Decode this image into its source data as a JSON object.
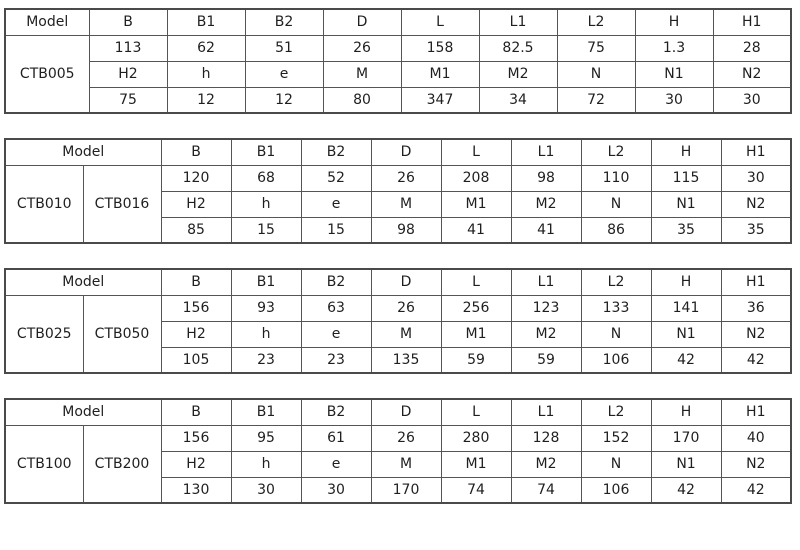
{
  "labels": {
    "model": "Model"
  },
  "dim_headers": [
    "B",
    "B1",
    "B2",
    "D",
    "L",
    "L1",
    "L2",
    "H",
    "H1"
  ],
  "param_labels": [
    "H2",
    "h",
    "e",
    "M",
    "M1",
    "M2",
    "N",
    "N1",
    "N2"
  ],
  "tables": [
    {
      "models": [
        "CTB005"
      ],
      "top_values": [
        "113",
        "62",
        "51",
        "26",
        "158",
        "82.5",
        "75",
        "1.3",
        "28"
      ],
      "bottom_values": [
        "75",
        "12",
        "12",
        "80",
        "347",
        "34",
        "72",
        "30",
        "30"
      ]
    },
    {
      "models": [
        "CTB010",
        "CTB016"
      ],
      "top_values": [
        "120",
        "68",
        "52",
        "26",
        "208",
        "98",
        "110",
        "115",
        "30"
      ],
      "bottom_values": [
        "85",
        "15",
        "15",
        "98",
        "41",
        "41",
        "86",
        "35",
        "35"
      ]
    },
    {
      "models": [
        "CTB025",
        "CTB050"
      ],
      "top_values": [
        "156",
        "93",
        "63",
        "26",
        "256",
        "123",
        "133",
        "141",
        "36"
      ],
      "bottom_values": [
        "105",
        "23",
        "23",
        "135",
        "59",
        "59",
        "106",
        "42",
        "42"
      ]
    },
    {
      "models": [
        "CTB100",
        "CTB200"
      ],
      "top_values": [
        "156",
        "95",
        "61",
        "26",
        "280",
        "128",
        "152",
        "170",
        "40"
      ],
      "bottom_values": [
        "130",
        "30",
        "30",
        "170",
        "74",
        "74",
        "106",
        "42",
        "42"
      ]
    }
  ],
  "colors": {
    "background": "#ffffff",
    "border": "#555555",
    "outer_border": "#4a4a4a",
    "text": "#1f1f1f"
  }
}
